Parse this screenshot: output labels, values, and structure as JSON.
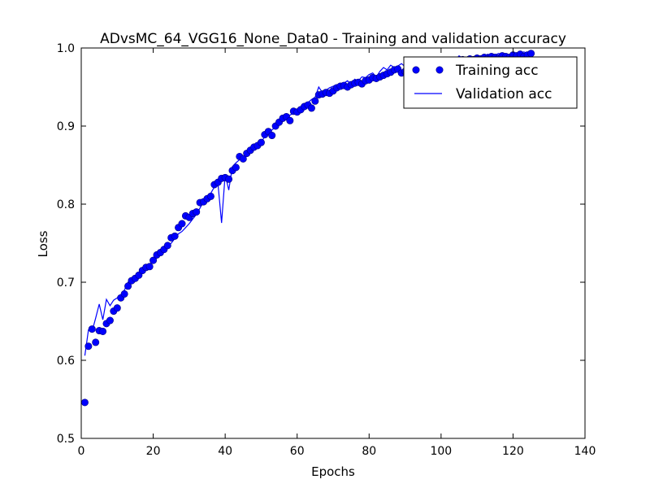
{
  "chart_data": {
    "type": "line",
    "title": "ADvsMC_64_VGG16_None_Data0 - Training and validation accuracy",
    "xlabel": "Epochs",
    "ylabel": "Loss",
    "xlim": [
      0,
      140
    ],
    "ylim": [
      0.5,
      1.0
    ],
    "xticks": [
      0,
      20,
      40,
      60,
      80,
      100,
      120,
      140
    ],
    "yticks": [
      0.5,
      0.6,
      0.7,
      0.8,
      0.9,
      1.0
    ],
    "x_tick_labels": [
      "0",
      "20",
      "40",
      "60",
      "80",
      "100",
      "120",
      "140"
    ],
    "y_tick_labels": [
      "0.5",
      "0.6",
      "0.7",
      "0.8",
      "0.9",
      "1.0"
    ],
    "grid": false,
    "legend_position": "top-right",
    "colors": {
      "series": "#0000ff",
      "frame": "#000000"
    },
    "series": [
      {
        "name": "Training acc",
        "style": "markers",
        "x": [
          1,
          2,
          3,
          4,
          5,
          6,
          7,
          8,
          9,
          10,
          11,
          12,
          13,
          14,
          15,
          16,
          17,
          18,
          19,
          20,
          21,
          22,
          23,
          24,
          25,
          26,
          27,
          28,
          29,
          30,
          31,
          32,
          33,
          34,
          35,
          36,
          37,
          38,
          39,
          40,
          41,
          42,
          43,
          44,
          45,
          46,
          47,
          48,
          49,
          50,
          51,
          52,
          53,
          54,
          55,
          56,
          57,
          58,
          59,
          60,
          61,
          62,
          63,
          64,
          65,
          66,
          67,
          68,
          69,
          70,
          71,
          72,
          73,
          74,
          75,
          76,
          77,
          78,
          79,
          80,
          81,
          82,
          83,
          84,
          85,
          86,
          87,
          88,
          89,
          90,
          91,
          92,
          93,
          94,
          95,
          96,
          97,
          98,
          99,
          100,
          101,
          102,
          103,
          104,
          105,
          106,
          107,
          108,
          109,
          110,
          111,
          112,
          113,
          114,
          115,
          116,
          117,
          118,
          119,
          120,
          121,
          122,
          123,
          124,
          125
        ],
        "y": [
          0.546,
          0.618,
          0.64,
          0.623,
          0.638,
          0.637,
          0.647,
          0.651,
          0.663,
          0.667,
          0.68,
          0.685,
          0.695,
          0.702,
          0.705,
          0.709,
          0.715,
          0.719,
          0.72,
          0.728,
          0.735,
          0.738,
          0.742,
          0.747,
          0.757,
          0.759,
          0.77,
          0.775,
          0.785,
          0.783,
          0.788,
          0.79,
          0.802,
          0.803,
          0.807,
          0.81,
          0.825,
          0.828,
          0.833,
          0.834,
          0.832,
          0.843,
          0.847,
          0.861,
          0.858,
          0.865,
          0.869,
          0.873,
          0.875,
          0.879,
          0.889,
          0.893,
          0.888,
          0.9,
          0.905,
          0.91,
          0.912,
          0.907,
          0.919,
          0.918,
          0.921,
          0.925,
          0.927,
          0.923,
          0.932,
          0.94,
          0.941,
          0.943,
          0.942,
          0.945,
          0.949,
          0.951,
          0.952,
          0.95,
          0.953,
          0.955,
          0.956,
          0.954,
          0.958,
          0.959,
          0.962,
          0.961,
          0.963,
          0.965,
          0.967,
          0.969,
          0.972,
          0.973,
          0.968,
          0.97,
          0.974,
          0.973,
          0.975,
          0.976,
          0.975,
          0.978,
          0.977,
          0.979,
          0.98,
          0.981,
          0.982,
          0.98,
          0.983,
          0.982,
          0.984,
          0.985,
          0.984,
          0.986,
          0.985,
          0.987,
          0.986,
          0.988,
          0.987,
          0.989,
          0.988,
          0.987,
          0.99,
          0.989,
          0.988,
          0.991,
          0.99,
          0.992,
          0.989,
          0.991,
          0.993
        ]
      },
      {
        "name": "Validation acc",
        "style": "line",
        "x": [
          1,
          2,
          3,
          4,
          5,
          6,
          7,
          8,
          9,
          10,
          11,
          12,
          13,
          14,
          15,
          16,
          17,
          18,
          19,
          20,
          21,
          22,
          23,
          24,
          25,
          26,
          27,
          28,
          29,
          30,
          31,
          32,
          33,
          34,
          35,
          36,
          37,
          38,
          39,
          40,
          41,
          42,
          43,
          44,
          45,
          46,
          47,
          48,
          49,
          50,
          51,
          52,
          53,
          54,
          55,
          56,
          57,
          58,
          59,
          60,
          61,
          62,
          63,
          64,
          65,
          66,
          67,
          68,
          69,
          70,
          71,
          72,
          73,
          74,
          75,
          76,
          77,
          78,
          79,
          80,
          81,
          82,
          83,
          84,
          85,
          86,
          87,
          88,
          89,
          90,
          91,
          92,
          93,
          94,
          95,
          96,
          97,
          98,
          99,
          100,
          101,
          102,
          103,
          104,
          105,
          106,
          107,
          108,
          109,
          110,
          111,
          112,
          113,
          114,
          115,
          116,
          117,
          118,
          119,
          120,
          121,
          122,
          123,
          124,
          125
        ],
        "y": [
          0.606,
          0.639,
          0.637,
          0.654,
          0.672,
          0.652,
          0.678,
          0.67,
          0.677,
          0.68,
          0.684,
          0.69,
          0.7,
          0.705,
          0.708,
          0.713,
          0.717,
          0.72,
          0.723,
          0.727,
          0.731,
          0.735,
          0.74,
          0.745,
          0.75,
          0.756,
          0.762,
          0.765,
          0.77,
          0.775,
          0.781,
          0.787,
          0.795,
          0.803,
          0.81,
          0.814,
          0.822,
          0.826,
          0.776,
          0.838,
          0.818,
          0.848,
          0.853,
          0.857,
          0.861,
          0.864,
          0.868,
          0.872,
          0.876,
          0.88,
          0.886,
          0.89,
          0.895,
          0.899,
          0.903,
          0.906,
          0.91,
          0.914,
          0.917,
          0.92,
          0.924,
          0.927,
          0.93,
          0.934,
          0.937,
          0.95,
          0.943,
          0.946,
          0.949,
          0.951,
          0.953,
          0.949,
          0.955,
          0.958,
          0.953,
          0.96,
          0.958,
          0.963,
          0.962,
          0.966,
          0.968,
          0.963,
          0.97,
          0.975,
          0.972,
          0.978,
          0.975,
          0.977,
          0.98,
          0.976,
          0.982,
          0.97,
          0.98,
          0.985,
          0.978,
          0.983,
          0.986,
          0.979,
          0.988,
          0.982,
          0.984,
          0.986,
          0.988,
          0.985,
          0.99,
          0.987,
          0.988,
          0.99,
          0.986,
          0.991,
          0.988,
          0.99,
          0.992,
          0.989,
          0.991,
          0.993,
          0.99,
          0.992,
          0.991,
          0.994,
          0.993,
          0.992,
          0.995,
          0.993,
          0.994
        ]
      }
    ]
  }
}
